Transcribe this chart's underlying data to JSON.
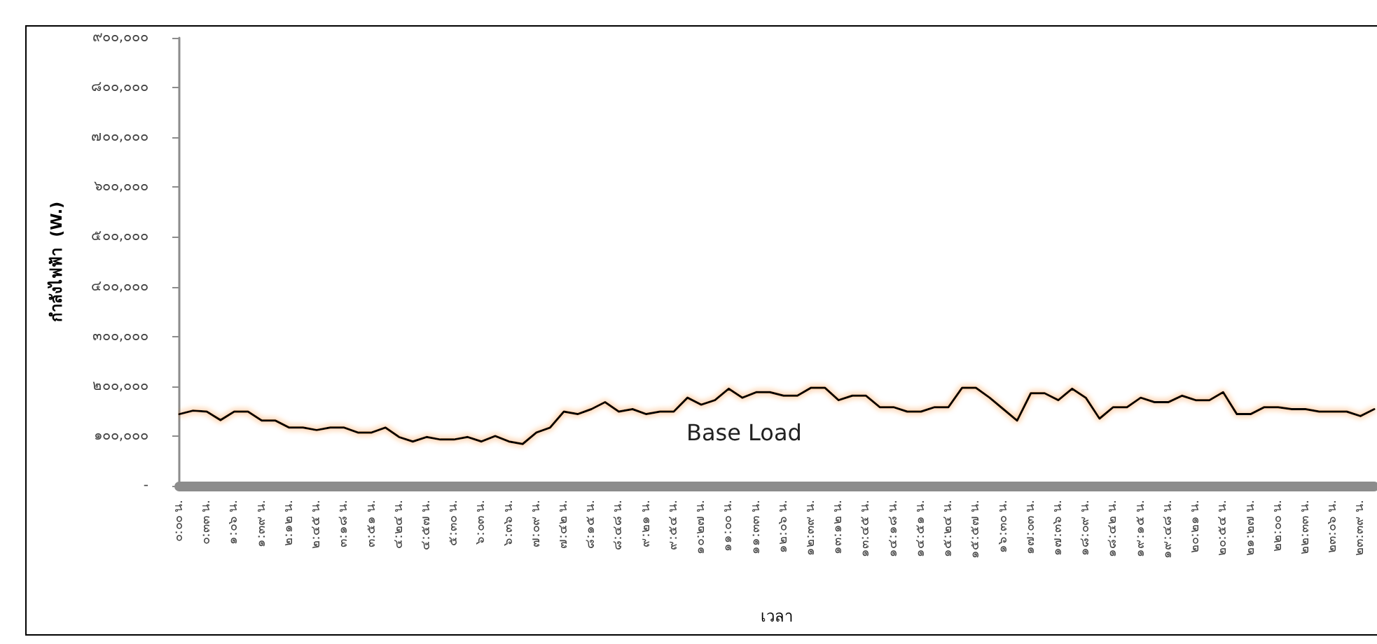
{
  "chart_data": {
    "type": "line",
    "xlabel": "เวลา",
    "ylabel": "กำลังไฟฟ้า  (W.)",
    "categories": [
      "๐:๐๐ น.",
      null,
      "๐:๓๓ น.",
      null,
      "๑:๐๖ น.",
      null,
      "๑:๓๙ น.",
      null,
      "๒:๑๒ น.",
      null,
      "๒:๔๕ น.",
      null,
      "๓:๑๘ น.",
      null,
      "๓:๕๑ น.",
      null,
      "๔:๒๔ น.",
      null,
      "๔:๕๗ น.",
      null,
      "๕:๓๐ น.",
      null,
      "๖:๐๓ น.",
      null,
      "๖:๓๖ น.",
      null,
      "๗:๐๙ น.",
      null,
      "๗:๔๒ น.",
      null,
      "๘:๑๕ น.",
      null,
      "๘:๔๘ น.",
      null,
      "๙:๒๑ น.",
      null,
      "๙:๕๔ น.",
      null,
      "๑๐:๒๗ น.",
      null,
      "๑๑:๐๐ น.",
      null,
      "๑๑:๓๓ น.",
      null,
      "๑๒:๐๖ น.",
      null,
      "๑๒:๓๙ น.",
      null,
      "๑๓:๑๒ น.",
      null,
      "๑๓:๔๕ น.",
      null,
      "๑๔:๑๘ น.",
      null,
      "๑๔:๕๑ น.",
      null,
      "๑๕:๒๔ น.",
      null,
      "๑๕:๕๗ น.",
      null,
      "๑๖:๓๐ น.",
      null,
      "๑๗:๐๓ น.",
      null,
      "๑๗:๓๖ น.",
      null,
      "๑๘:๐๙ น.",
      null,
      "๑๘:๔๒ น.",
      null,
      "๑๙:๑๕ น.",
      null,
      "๑๙:๔๘ น.",
      null,
      "๒๐:๒๑ น.",
      null,
      "๒๐:๕๔ น.",
      null,
      "๒๑:๒๗ น.",
      null,
      "๒๒:๐๐ น.",
      null,
      "๒๒:๓๓ น.",
      null,
      "๒๓:๐๖ น.",
      null,
      "๒๓:๓๙ น.",
      null
    ],
    "series": [
      {
        "color": "#000000",
        "values": [
          144000,
          151000,
          149000,
          132000,
          149000,
          149000,
          131000,
          131000,
          117000,
          117000,
          112000,
          117000,
          117000,
          107000,
          107000,
          117000,
          98000,
          89000,
          98000,
          93000,
          93000,
          98000,
          89000,
          100000,
          89000,
          84000,
          107000,
          117000,
          149000,
          144000,
          154000,
          168000,
          149000,
          154000,
          144000,
          149000,
          149000,
          177000,
          163000,
          172000,
          195000,
          177000,
          188000,
          188000,
          181000,
          181000,
          197000,
          197000,
          172000,
          181000,
          181000,
          158000,
          158000,
          149000,
          149000,
          158000,
          158000,
          197000,
          197000,
          177000,
          154000,
          131000,
          186000,
          186000,
          172000,
          195000,
          177000,
          135000,
          158000,
          158000,
          177000,
          168000,
          168000,
          181000,
          172000,
          172000,
          188000,
          144000,
          144000,
          158000,
          158000,
          154000,
          154000,
          149000,
          149000,
          149000,
          140000,
          154000
        ]
      }
    ],
    "ylim": [
      0,
      900000
    ],
    "yticks": [
      {
        "value": 0,
        "label": "-"
      },
      {
        "value": 100000,
        "label": "๑๐๐,๐๐๐"
      },
      {
        "value": 200000,
        "label": "๒๐๐,๐๐๐"
      },
      {
        "value": 300000,
        "label": "๓๐๐,๐๐๐"
      },
      {
        "value": 400000,
        "label": "๔๐๐,๐๐๐"
      },
      {
        "value": 500000,
        "label": "๕๐๐,๐๐๐"
      },
      {
        "value": 600000,
        "label": "๖๐๐,๐๐๐"
      },
      {
        "value": 700000,
        "label": "๗๐๐,๐๐๐"
      },
      {
        "value": 800000,
        "label": "๘๐๐,๐๐๐"
      },
      {
        "value": 900000,
        "label": "๙๐๐,๐๐๐"
      }
    ],
    "annotations": [
      "Base Load"
    ],
    "grid": false,
    "marker": "none",
    "line_style": "solid"
  }
}
